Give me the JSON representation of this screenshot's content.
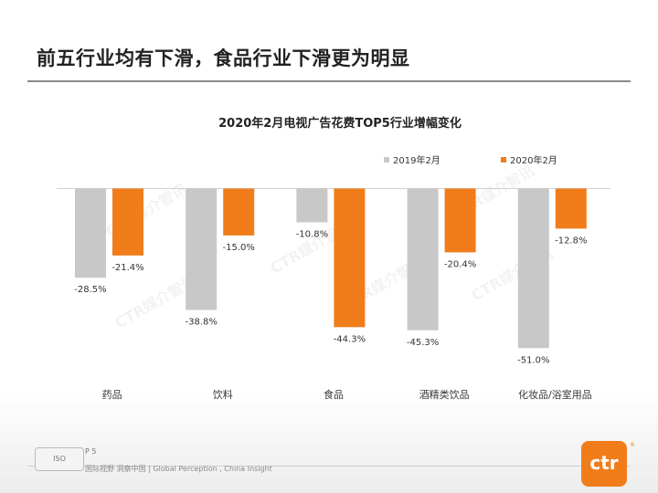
{
  "headline": "前五行业均有下滑，食品行业下滑更为明显",
  "chart_data": {
    "type": "bar",
    "title": "2020年2月电视广告花费TOP5行业增幅变化",
    "categories": [
      "药品",
      "饮料",
      "食品",
      "酒精类饮品",
      "化妆品/浴室用品"
    ],
    "series": [
      {
        "name": "2019年2月",
        "color": "#c8c8c8",
        "values": [
          -28.5,
          -38.8,
          -10.8,
          -45.3,
          -51.0
        ],
        "labels": [
          "-28.5%",
          "-38.8%",
          "-10.8%",
          "-45.3%",
          "-51.0%"
        ]
      },
      {
        "name": "2020年2月",
        "color": "#f07d1a",
        "values": [
          -21.4,
          -15.0,
          -44.3,
          -20.4,
          -12.8
        ],
        "labels": [
          "-21.4%",
          "-15.0%",
          "-44.3%",
          "-20.4%",
          "-12.8%"
        ]
      }
    ],
    "legend_position": "top-right",
    "ylim": [
      -55,
      0
    ],
    "xlabel": "",
    "ylabel": ""
  },
  "watermark": "CTR媒介智讯",
  "footer": {
    "page": "P 5",
    "tagline": "国际视野  洞察中国 |  Global Perception , China Insight",
    "logo_text": "ctr",
    "cert_text": "ISO"
  }
}
